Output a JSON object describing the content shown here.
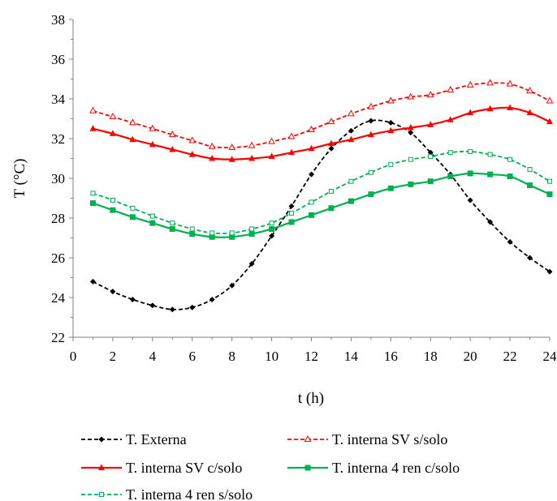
{
  "chart_data": {
    "type": "line",
    "xlabel": "t (h)",
    "ylabel": "T (°C)",
    "xlim": [
      0,
      24
    ],
    "ylim": [
      22,
      38
    ],
    "x_ticks": [
      0,
      2,
      4,
      6,
      8,
      10,
      12,
      14,
      16,
      18,
      20,
      22,
      24
    ],
    "y_ticks": [
      22,
      24,
      26,
      28,
      30,
      32,
      34,
      36,
      38
    ],
    "grid": false,
    "legend_position": "bottom",
    "x": [
      1,
      2,
      3,
      4,
      5,
      6,
      7,
      8,
      9,
      10,
      11,
      12,
      13,
      14,
      15,
      16,
      17,
      18,
      19,
      20,
      21,
      22,
      23,
      24
    ],
    "series": [
      {
        "name": "T. Externa",
        "color": "#000000",
        "dash": "dashed",
        "marker": "diamond",
        "values": [
          24.8,
          24.3,
          23.9,
          23.6,
          23.4,
          23.5,
          23.9,
          24.6,
          25.7,
          27.1,
          28.6,
          30.2,
          31.5,
          32.4,
          32.9,
          32.8,
          32.3,
          31.3,
          30.2,
          28.9,
          27.8,
          26.8,
          26.0,
          25.3
        ]
      },
      {
        "name": "T. interna SV s/solo",
        "color": "#ff0000",
        "dash": "dashed",
        "marker": "triangle-open",
        "values": [
          33.4,
          33.1,
          32.8,
          32.5,
          32.2,
          31.9,
          31.6,
          31.55,
          31.65,
          31.85,
          32.1,
          32.45,
          32.85,
          33.25,
          33.6,
          33.9,
          34.1,
          34.2,
          34.45,
          34.7,
          34.8,
          34.75,
          34.4,
          33.9
        ]
      },
      {
        "name": "T. interna SV c/solo",
        "color": "#ff0000",
        "dash": "solid",
        "marker": "triangle",
        "values": [
          32.5,
          32.25,
          31.95,
          31.7,
          31.45,
          31.2,
          31.0,
          30.95,
          31.0,
          31.1,
          31.3,
          31.5,
          31.75,
          31.95,
          32.2,
          32.4,
          32.55,
          32.7,
          32.95,
          33.3,
          33.5,
          33.55,
          33.3,
          32.85
        ]
      },
      {
        "name": "T. interna 4 ren c/solo",
        "color": "#00b050",
        "dash": "solid",
        "marker": "square",
        "values": [
          28.75,
          28.4,
          28.05,
          27.75,
          27.45,
          27.2,
          27.05,
          27.05,
          27.2,
          27.45,
          27.8,
          28.15,
          28.5,
          28.85,
          29.2,
          29.5,
          29.7,
          29.85,
          30.1,
          30.25,
          30.2,
          30.1,
          29.65,
          29.2
        ]
      },
      {
        "name": "T. interna 4 ren s/solo",
        "color": "#00b050",
        "dash": "dashed",
        "marker": "square-open",
        "values": [
          29.25,
          28.9,
          28.5,
          28.1,
          27.75,
          27.45,
          27.25,
          27.25,
          27.45,
          27.75,
          28.25,
          28.8,
          29.35,
          29.85,
          30.3,
          30.7,
          30.95,
          31.1,
          31.3,
          31.35,
          31.2,
          30.95,
          30.45,
          29.85
        ]
      }
    ]
  }
}
